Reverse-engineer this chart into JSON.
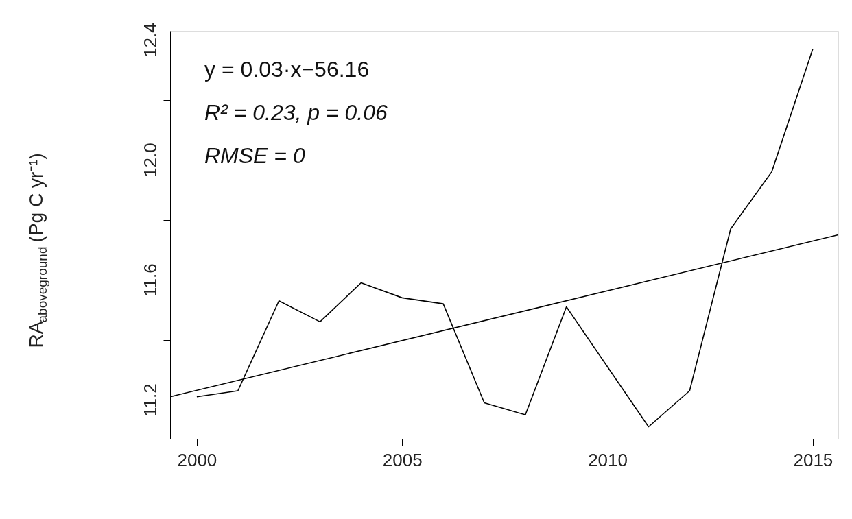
{
  "chart_data": {
    "type": "line",
    "ylabel": "RA$_{aboveground}$ (Pg C yr⁻¹)",
    "x": [
      2000,
      2001,
      2002,
      2003,
      2004,
      2005,
      2006,
      2007,
      2008,
      2009,
      2010,
      2011,
      2012,
      2013,
      2014,
      2015
    ],
    "series": [
      {
        "color": "#000000",
        "values": [
          11.21,
          11.23,
          11.53,
          11.46,
          11.59,
          11.54,
          11.52,
          11.19,
          11.15,
          11.51,
          11.31,
          11.11,
          11.23,
          11.77,
          11.96,
          12.37
        ]
      },
      {
        "type": "line",
        "color": "#000000",
        "x": [
          1999.35,
          2015.62
        ],
        "values": [
          11.21,
          11.75
        ]
      }
    ],
    "xlim": [
      1999.35,
      2015.62
    ],
    "xticks": [
      2000,
      2005,
      2010,
      2015
    ],
    "ylim": [
      11.07,
      12.43
    ],
    "yticks": [
      11.2,
      {
        "value": 11.4,
        "label": null
      },
      11.6,
      {
        "value": 11.8,
        "label": null
      },
      {
        "value": 12.0,
        "label": "12.0"
      },
      {
        "value": 12.2,
        "label": null
      },
      12.4
    ],
    "annotations": [
      "y = 0.03·x−56.16",
      "R² = 0.23,  p = 0.06",
      "RMSE = 0"
    ],
    "grid": false,
    "marker": "none",
    "line_style": "solid"
  }
}
